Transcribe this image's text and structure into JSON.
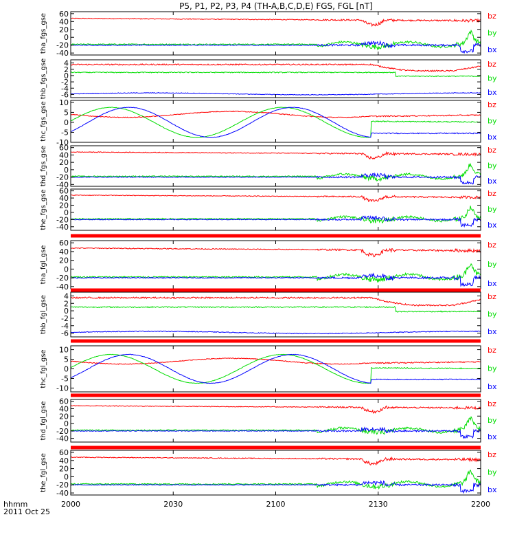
{
  "chart_data": {
    "type": "line",
    "title": "P5, P1, P2, P3, P4 (TH-A,B,C,D,E) FGS, FGL [nT]",
    "x_tick_labels": [
      "2000",
      "2030",
      "2100",
      "2130",
      "2200"
    ],
    "x_range_minutes": [
      0,
      120
    ],
    "x_tick_minutes": [
      0,
      30,
      60,
      90,
      120
    ],
    "x_label_line1": "hhmm",
    "x_label_line2": "2011 Oct 25",
    "colors": {
      "bx": "#0000ff",
      "by": "#00dd00",
      "bz": "#ff0000",
      "bar": "#ff0000"
    },
    "panels": [
      {
        "ylabel": "tha_fgs_gse",
        "ylim": [
          -45,
          65
        ],
        "yticks": [
          60,
          40,
          20,
          0,
          -20,
          -40
        ],
        "style": "A",
        "bar_after": false,
        "legend": [
          "bz",
          "by",
          "bx"
        ]
      },
      {
        "ylabel": "thb_fgs_gse",
        "ylim": [
          -7,
          5
        ],
        "yticks": [
          4,
          2,
          0,
          -2,
          -4,
          -6
        ],
        "style": "B",
        "bar_after": false,
        "legend": [
          "bz",
          "by",
          "bx"
        ]
      },
      {
        "ylabel": "thc_fgs_gse",
        "ylim": [
          -10,
          11
        ],
        "yticks": [
          10,
          5,
          0,
          -5,
          -10
        ],
        "style": "C",
        "bar_after": false,
        "legend": [
          "bz",
          "by",
          "bx"
        ]
      },
      {
        "ylabel": "thd_fgs_gse",
        "ylim": [
          -45,
          65
        ],
        "yticks": [
          60,
          40,
          20,
          0,
          -20,
          -40
        ],
        "style": "A",
        "bar_after": false,
        "legend": [
          "bz",
          "by",
          "bx"
        ]
      },
      {
        "ylabel": "the_fgs_gse",
        "ylim": [
          -50,
          65
        ],
        "yticks": [
          60,
          40,
          20,
          0,
          -20,
          -40
        ],
        "style": "A",
        "bar_after": true,
        "legend": [
          "bz",
          "by",
          "bx"
        ]
      },
      {
        "ylabel": "tha_fgl_gse",
        "ylim": [
          -45,
          65
        ],
        "yticks": [
          60,
          40,
          20,
          0,
          -20,
          -40
        ],
        "style": "A",
        "bar_after": true,
        "legend": [
          "bz",
          "by",
          "bx"
        ]
      },
      {
        "ylabel": "thb_fgl_gse",
        "ylim": [
          -7,
          5
        ],
        "yticks": [
          4,
          2,
          0,
          -2,
          -4,
          -6
        ],
        "style": "B",
        "bar_after": true,
        "legend": [
          "bz",
          "by",
          "bx"
        ]
      },
      {
        "ylabel": "thc_fgl_gse",
        "ylim": [
          -12,
          12
        ],
        "yticks": [
          10,
          5,
          0,
          -5,
          -10
        ],
        "style": "C",
        "bar_after": true,
        "legend": [
          "bz",
          "by",
          "bx"
        ]
      },
      {
        "ylabel": "thd_fgl_gse",
        "ylim": [
          -50,
          65
        ],
        "yticks": [
          60,
          40,
          20,
          0,
          -20,
          -40
        ],
        "style": "A",
        "bar_after": true,
        "legend": [
          "bz",
          "by",
          "bx"
        ]
      },
      {
        "ylabel": "the_fgl_gse",
        "ylim": [
          -45,
          65
        ],
        "yticks": [
          60,
          40,
          20,
          0,
          -20,
          -40
        ],
        "style": "A",
        "bar_after": false,
        "legend": [
          "bz",
          "by",
          "bx"
        ]
      }
    ]
  }
}
